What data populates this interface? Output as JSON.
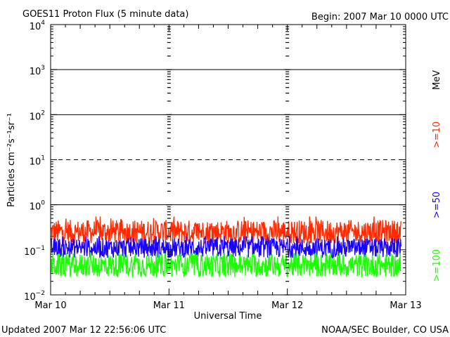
{
  "header": {
    "title": "GOES11 Proton Flux (5 minute data)",
    "begin": "Begin: 2007 Mar 10 0000 UTC"
  },
  "footer": {
    "updated": "Updated 2007 Mar 12 22:56:06 UTC",
    "credit": "NOAA/SEC Boulder, CO USA"
  },
  "chart_data": {
    "type": "line",
    "title": "GOES11 Proton Flux (5 minute data)",
    "xlabel": "Universal Time",
    "ylabel": "Particles cm⁻²s⁻¹sr⁻¹",
    "yscale": "log",
    "ylim": [
      0.01,
      10000
    ],
    "xlim": [
      0,
      3
    ],
    "x_tick_labels": [
      "Mar 10",
      "Mar 11",
      "Mar 12",
      "Mar 13"
    ],
    "y_tick_labels": [
      {
        "base": "10",
        "exp": "4"
      },
      {
        "base": "10",
        "exp": "3"
      },
      {
        "base": "10",
        "exp": "2"
      },
      {
        "base": "10",
        "exp": "1"
      },
      {
        "base": "10",
        "exp": "0"
      },
      {
        "base": "10",
        "exp": "−1"
      },
      {
        "base": "10",
        "exp": "−2"
      }
    ],
    "unit_label": "MeV",
    "grid": {
      "solid_lines_at": [
        1000,
        100,
        1
      ],
      "dashed_lines_at": [
        10
      ],
      "data_end_day": 2.96
    },
    "series": [
      {
        "name": ">=10",
        "color": "#ff2a00",
        "mean": 0.25,
        "min": 0.14,
        "max": 0.55
      },
      {
        "name": ">=50",
        "color": "#1a00ff",
        "mean": 0.11,
        "min": 0.065,
        "max": 0.2
      },
      {
        "name": ">=100",
        "color": "#19ff00",
        "mean": 0.045,
        "min": 0.022,
        "max": 0.085
      }
    ]
  }
}
